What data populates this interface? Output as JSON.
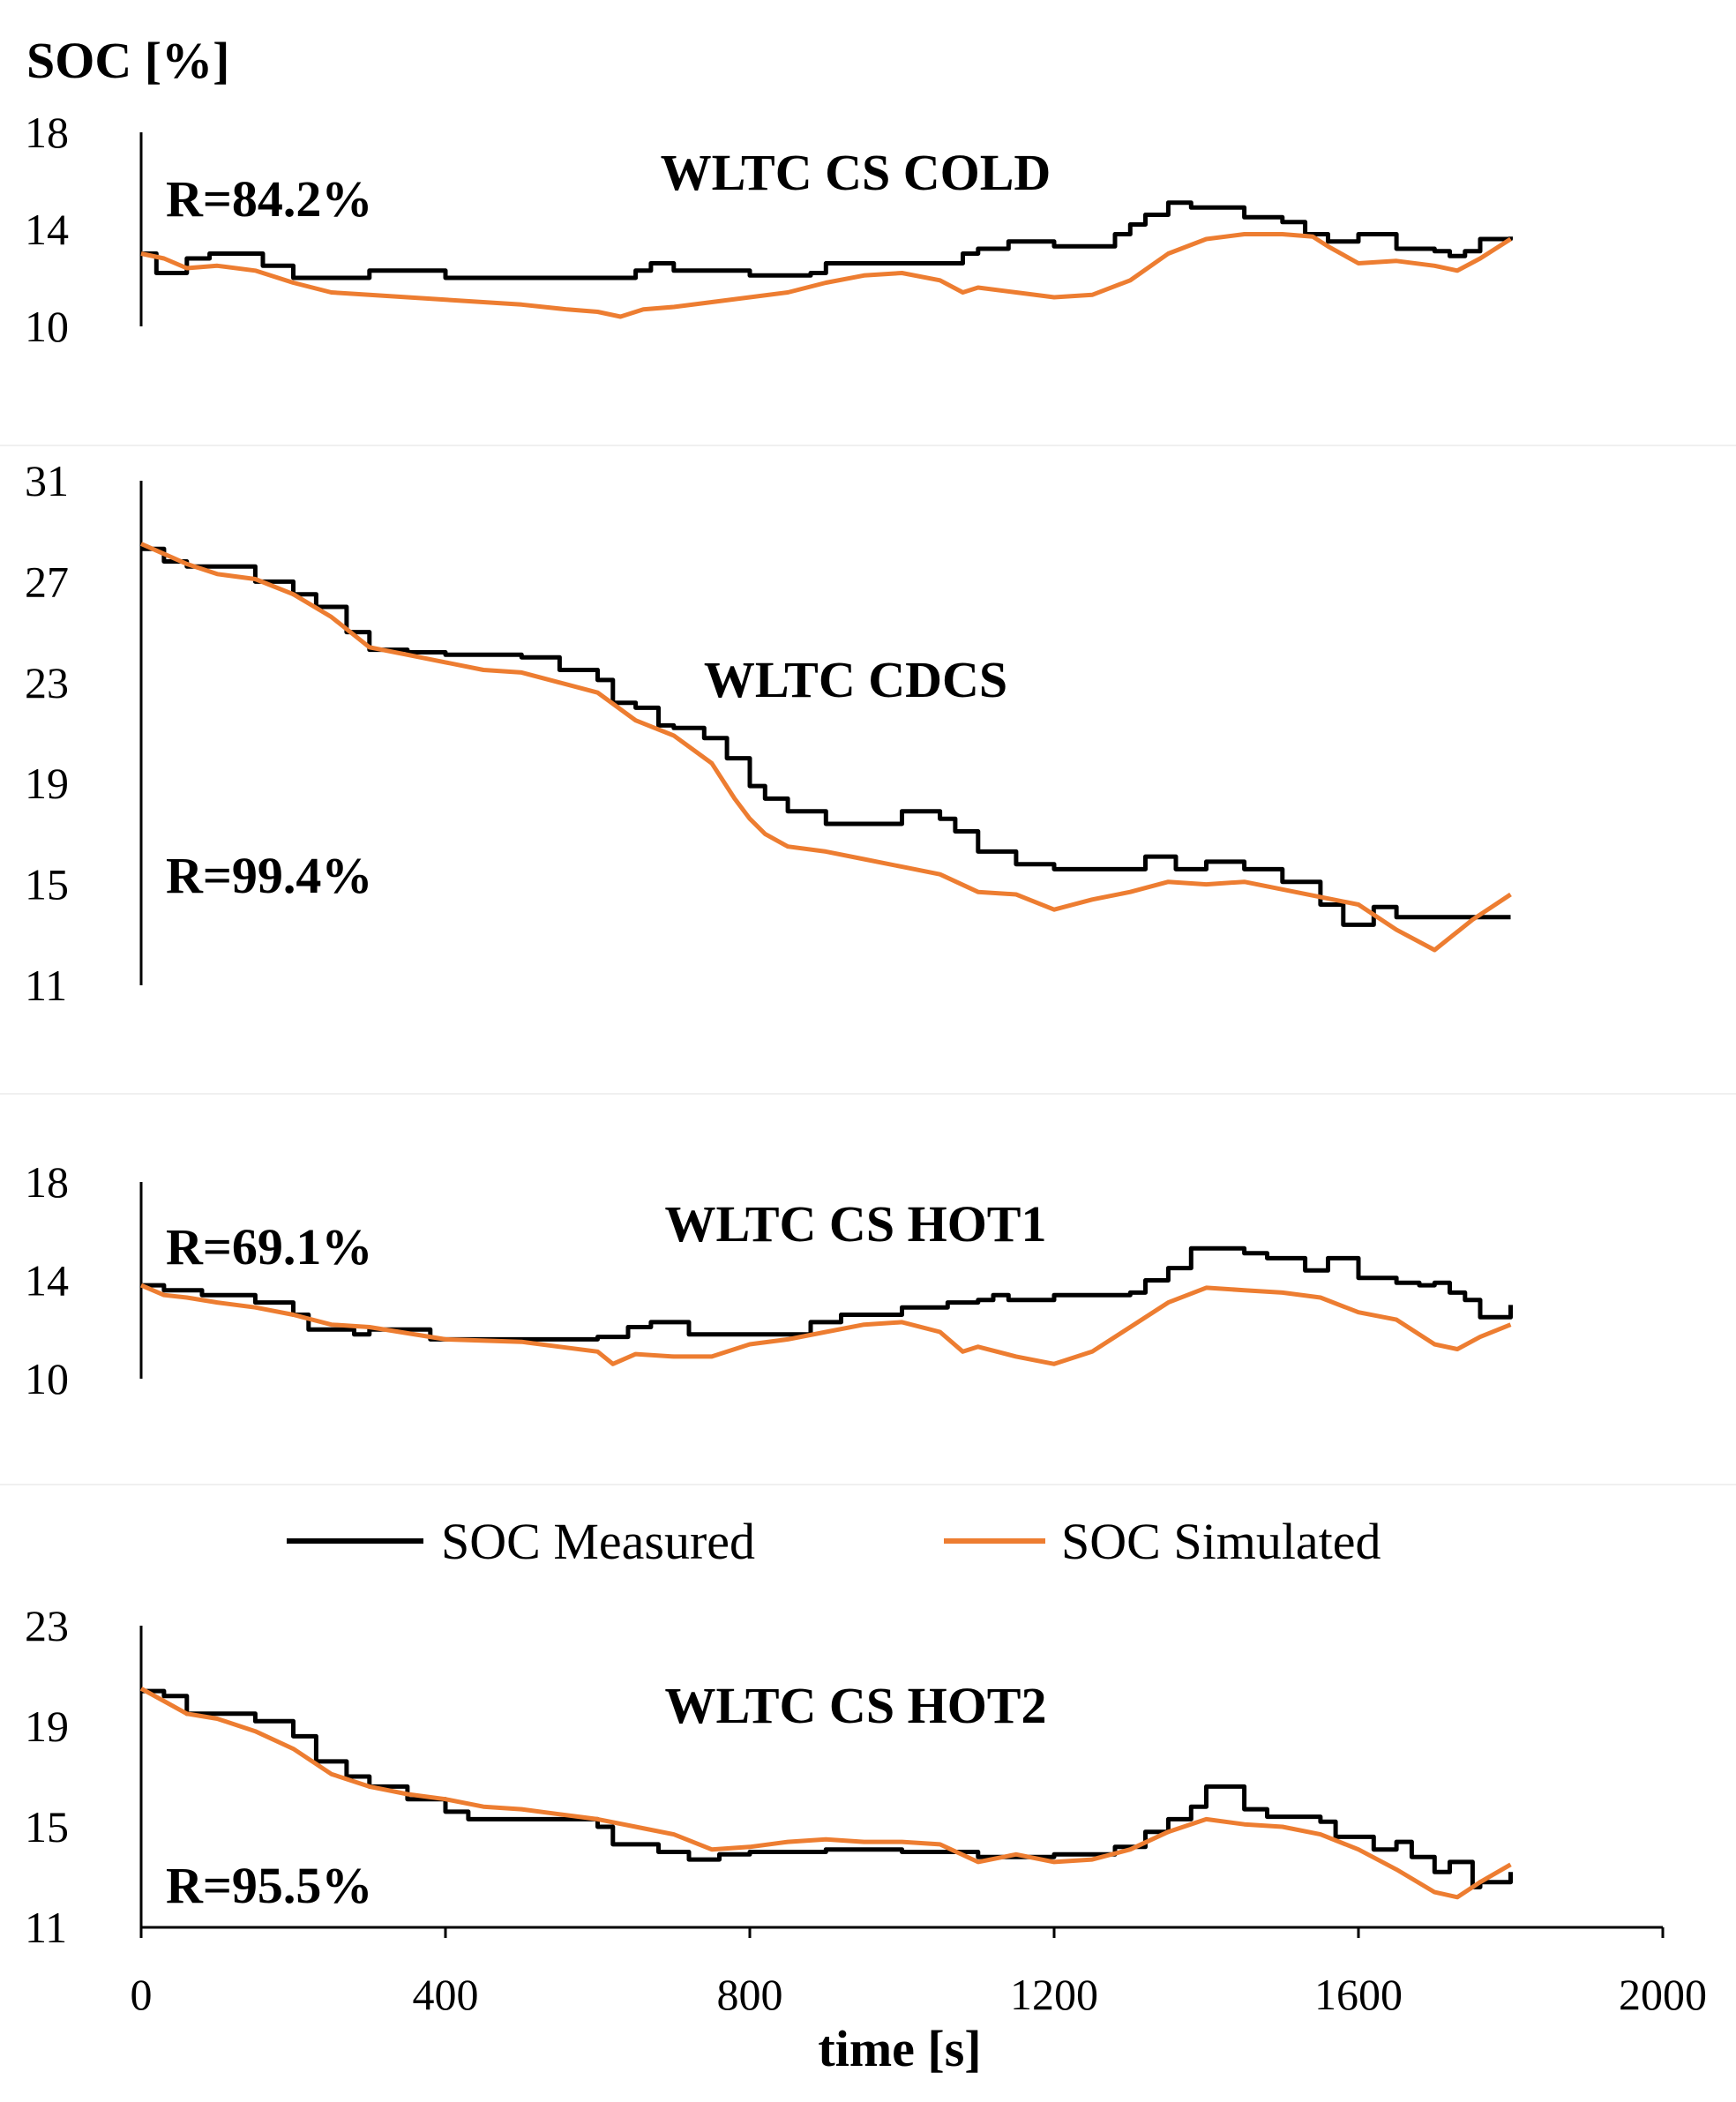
{
  "figure": {
    "ylabel": "SOC [%]",
    "xlabel": "time [s]",
    "x_ticks": [
      "0",
      "400",
      "800",
      "1200",
      "1600",
      "2000"
    ],
    "legend": [
      {
        "name": "SOC Measured",
        "color": "#000000"
      },
      {
        "name": "SOC Simulated",
        "color": "#ED7D31"
      }
    ]
  },
  "chart_data": [
    {
      "type": "line",
      "title": "WLTC CS COLD",
      "annotation": "R=84.2%",
      "xlabel": "time [s]",
      "ylabel": "SOC [%]",
      "xlim": [
        0,
        2000
      ],
      "ylim": [
        10,
        18
      ],
      "y_ticks": [
        10,
        14,
        18
      ],
      "series": [
        {
          "name": "SOC Measured",
          "color": "#000000",
          "step": true,
          "x": [
            0,
            20,
            60,
            90,
            160,
            200,
            300,
            400,
            600,
            650,
            670,
            700,
            800,
            880,
            900,
            1080,
            1100,
            1140,
            1200,
            1280,
            1300,
            1320,
            1350,
            1380,
            1450,
            1500,
            1530,
            1560,
            1600,
            1650,
            1700,
            1720,
            1740,
            1760,
            1800
          ],
          "y": [
            13,
            12.2,
            12.8,
            13,
            12.5,
            12,
            12.3,
            12,
            12,
            12.3,
            12.6,
            12.3,
            12.1,
            12.2,
            12.6,
            13,
            13.2,
            13.5,
            13.3,
            13.8,
            14.2,
            14.6,
            15.1,
            14.9,
            14.5,
            14.3,
            13.8,
            13.5,
            13.8,
            13.2,
            13.1,
            12.9,
            13.1,
            13.6,
            13.7
          ]
        },
        {
          "name": "SOC Simulated",
          "color": "#ED7D31",
          "step": false,
          "x": [
            0,
            30,
            60,
            100,
            150,
            200,
            250,
            300,
            400,
            500,
            560,
            600,
            630,
            660,
            700,
            750,
            800,
            850,
            900,
            950,
            1000,
            1050,
            1080,
            1100,
            1150,
            1200,
            1250,
            1300,
            1350,
            1400,
            1450,
            1500,
            1540,
            1560,
            1600,
            1650,
            1700,
            1730,
            1760,
            1800
          ],
          "y": [
            13,
            12.8,
            12.4,
            12.5,
            12.3,
            11.8,
            11.4,
            11.3,
            11.1,
            10.9,
            10.7,
            10.6,
            10.4,
            10.7,
            10.8,
            11,
            11.2,
            11.4,
            11.8,
            12.1,
            12.2,
            11.9,
            11.4,
            11.6,
            11.4,
            11.2,
            11.3,
            11.9,
            13,
            13.6,
            13.8,
            13.8,
            13.7,
            13.3,
            12.6,
            12.7,
            12.5,
            12.3,
            12.8,
            13.6
          ]
        }
      ]
    },
    {
      "type": "line",
      "title": "WLTC CDCS",
      "annotation": "R=99.4%",
      "xlabel": "time [s]",
      "ylabel": "SOC [%]",
      "xlim": [
        0,
        2000
      ],
      "ylim": [
        11,
        31
      ],
      "y_ticks": [
        11,
        15,
        19,
        23,
        27,
        31
      ],
      "series": [
        {
          "name": "SOC Measured",
          "color": "#000000",
          "step": true,
          "x": [
            0,
            30,
            60,
            150,
            200,
            230,
            270,
            300,
            350,
            400,
            500,
            550,
            600,
            620,
            650,
            680,
            700,
            740,
            770,
            800,
            820,
            850,
            900,
            1000,
            1050,
            1070,
            1100,
            1150,
            1200,
            1280,
            1320,
            1360,
            1400,
            1450,
            1500,
            1550,
            1580,
            1620,
            1650,
            1800
          ],
          "y": [
            28.3,
            27.8,
            27.6,
            27,
            26.5,
            26,
            25,
            24.3,
            24.2,
            24.1,
            24,
            23.5,
            23.1,
            22.2,
            22,
            21.3,
            21.2,
            20.8,
            20,
            18.9,
            18.4,
            17.9,
            17.4,
            17.9,
            17.6,
            17.1,
            16.3,
            15.8,
            15.6,
            15.6,
            16.1,
            15.6,
            15.9,
            15.6,
            15.1,
            14.2,
            13.4,
            14.1,
            13.7,
            13.7
          ]
        },
        {
          "name": "SOC Simulated",
          "color": "#ED7D31",
          "step": false,
          "x": [
            0,
            30,
            60,
            100,
            150,
            200,
            250,
            300,
            350,
            400,
            450,
            500,
            550,
            600,
            650,
            700,
            750,
            780,
            800,
            820,
            850,
            900,
            950,
            1000,
            1050,
            1100,
            1150,
            1200,
            1250,
            1300,
            1350,
            1400,
            1450,
            1500,
            1550,
            1600,
            1650,
            1700,
            1750,
            1800
          ],
          "y": [
            28.5,
            28.1,
            27.7,
            27.3,
            27.1,
            26.5,
            25.6,
            24.4,
            24.1,
            23.8,
            23.5,
            23.4,
            23,
            22.6,
            21.5,
            20.9,
            19.8,
            18.4,
            17.6,
            17,
            16.5,
            16.3,
            16,
            15.7,
            15.4,
            14.7,
            14.6,
            14,
            14.4,
            14.7,
            15.1,
            15,
            15.1,
            14.8,
            14.5,
            14.2,
            13.2,
            12.4,
            13.6,
            14.6
          ]
        }
      ]
    },
    {
      "type": "line",
      "title": "WLTC CS HOT1",
      "annotation": "R=69.1%",
      "xlabel": "time [s]",
      "ylabel": "SOC [%]",
      "xlim": [
        0,
        2000
      ],
      "ylim": [
        10,
        18
      ],
      "y_ticks": [
        10,
        14,
        18
      ],
      "series": [
        {
          "name": "SOC Measured",
          "color": "#000000",
          "step": true,
          "x": [
            0,
            30,
            80,
            150,
            200,
            220,
            280,
            300,
            380,
            500,
            600,
            640,
            670,
            720,
            800,
            880,
            920,
            1000,
            1060,
            1100,
            1120,
            1140,
            1200,
            1300,
            1320,
            1350,
            1380,
            1450,
            1480,
            1530,
            1560,
            1600,
            1650,
            1680,
            1700,
            1720,
            1740,
            1760,
            1800
          ],
          "y": [
            13.8,
            13.6,
            13.4,
            13.1,
            12.6,
            12,
            11.8,
            12,
            11.6,
            11.6,
            11.7,
            12.1,
            12.3,
            11.8,
            11.8,
            12.3,
            12.6,
            12.9,
            13.1,
            13.2,
            13.4,
            13.2,
            13.4,
            13.5,
            14,
            14.5,
            15.3,
            15.1,
            14.9,
            14.4,
            14.9,
            14.1,
            13.9,
            13.8,
            13.9,
            13.5,
            13.2,
            12.5,
            13
          ]
        },
        {
          "name": "SOC Simulated",
          "color": "#ED7D31",
          "step": false,
          "x": [
            0,
            30,
            60,
            100,
            150,
            200,
            250,
            300,
            400,
            500,
            550,
            600,
            620,
            650,
            700,
            750,
            800,
            850,
            900,
            950,
            1000,
            1050,
            1080,
            1100,
            1150,
            1200,
            1250,
            1300,
            1350,
            1400,
            1450,
            1500,
            1550,
            1600,
            1650,
            1700,
            1730,
            1760,
            1800
          ],
          "y": [
            13.8,
            13.4,
            13.3,
            13.1,
            12.9,
            12.6,
            12.2,
            12.1,
            11.6,
            11.5,
            11.3,
            11.1,
            10.6,
            11,
            10.9,
            10.9,
            11.4,
            11.6,
            11.9,
            12.2,
            12.3,
            11.9,
            11.1,
            11.3,
            10.9,
            10.6,
            11.1,
            12.1,
            13.1,
            13.7,
            13.6,
            13.5,
            13.3,
            12.7,
            12.4,
            11.4,
            11.2,
            11.7,
            12.2
          ]
        }
      ]
    },
    {
      "type": "line",
      "title": "WLTC CS HOT2",
      "annotation": "R=95.5%",
      "xlabel": "time [s]",
      "ylabel": "SOC [%]",
      "xlim": [
        0,
        2000
      ],
      "ylim": [
        11,
        23
      ],
      "y_ticks": [
        11,
        15,
        19,
        23
      ],
      "x_ticks": [
        0,
        400,
        800,
        1200,
        1600,
        2000
      ],
      "series": [
        {
          "name": "SOC Measured",
          "color": "#000000",
          "step": true,
          "x": [
            0,
            30,
            60,
            150,
            200,
            230,
            270,
            300,
            350,
            400,
            430,
            600,
            620,
            680,
            720,
            760,
            800,
            900,
            1000,
            1100,
            1200,
            1280,
            1320,
            1350,
            1380,
            1400,
            1450,
            1480,
            1550,
            1570,
            1620,
            1650,
            1670,
            1700,
            1720,
            1750,
            1760,
            1800
          ],
          "y": [
            20.4,
            20.2,
            19.5,
            19.2,
            18.6,
            17.6,
            17,
            16.6,
            16.1,
            15.6,
            15.3,
            15,
            14.3,
            14,
            13.7,
            13.9,
            14,
            14.1,
            14,
            13.8,
            13.9,
            14.2,
            14.8,
            15.3,
            15.8,
            16.6,
            15.7,
            15.4,
            15.2,
            14.6,
            14.1,
            14.4,
            13.8,
            13.2,
            13.6,
            12.6,
            12.8,
            13.2
          ]
        },
        {
          "name": "SOC Simulated",
          "color": "#ED7D31",
          "step": false,
          "x": [
            0,
            30,
            60,
            100,
            150,
            200,
            250,
            300,
            350,
            400,
            450,
            500,
            550,
            600,
            650,
            700,
            750,
            800,
            850,
            900,
            950,
            1000,
            1050,
            1100,
            1150,
            1200,
            1250,
            1300,
            1350,
            1400,
            1450,
            1500,
            1550,
            1600,
            1650,
            1700,
            1730,
            1760,
            1800
          ],
          "y": [
            20.5,
            20,
            19.5,
            19.3,
            18.8,
            18.1,
            17.1,
            16.6,
            16.3,
            16.1,
            15.8,
            15.7,
            15.5,
            15.3,
            15,
            14.7,
            14.1,
            14.2,
            14.4,
            14.5,
            14.4,
            14.4,
            14.3,
            13.6,
            13.9,
            13.6,
            13.7,
            14.1,
            14.8,
            15.3,
            15.1,
            15,
            14.7,
            14.1,
            13.3,
            12.4,
            12.2,
            12.8,
            13.5
          ]
        }
      ]
    }
  ]
}
